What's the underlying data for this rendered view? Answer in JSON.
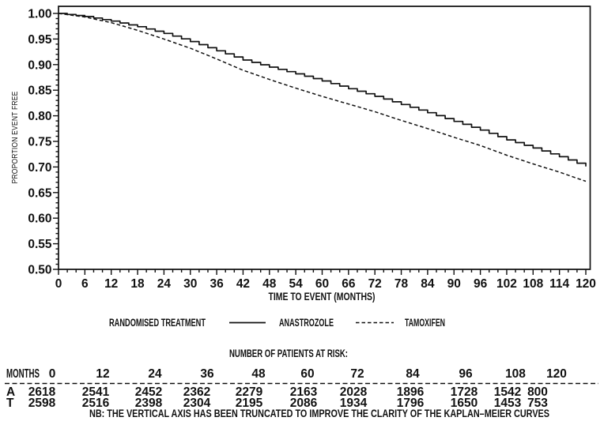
{
  "figure": {
    "background": "#ffffff",
    "ink_color": "#111111"
  },
  "chart_data": {
    "type": "line",
    "title": "",
    "xlabel": "TIME TO EVENT (MONTHS)",
    "ylabel": "PROPORTION EVENT FREE",
    "xlim": [
      0,
      120
    ],
    "ylim": [
      0.5,
      1.0
    ],
    "x_major_tick_step": 6,
    "x_minor_tick_step": 2,
    "y_major_tick_step": 0.05,
    "y_minor_tick_step": 0.01,
    "grid": "off",
    "legend_position": "below-axis",
    "x": [
      0,
      6,
      12,
      18,
      24,
      30,
      36,
      42,
      48,
      54,
      60,
      66,
      72,
      78,
      84,
      90,
      96,
      102,
      108,
      114,
      120
    ],
    "series": [
      {
        "name": "ANASTROZOLE",
        "line_style": "solid",
        "values": [
          1.0,
          0.994,
          0.985,
          0.974,
          0.961,
          0.945,
          0.927,
          0.909,
          0.895,
          0.882,
          0.868,
          0.853,
          0.838,
          0.822,
          0.806,
          0.789,
          0.772,
          0.753,
          0.737,
          0.72,
          0.701
        ]
      },
      {
        "name": "TAMOXIFEN",
        "line_style": "dashed",
        "values": [
          1.0,
          0.993,
          0.982,
          0.967,
          0.95,
          0.932,
          0.911,
          0.889,
          0.871,
          0.854,
          0.838,
          0.823,
          0.808,
          0.791,
          0.775,
          0.758,
          0.742,
          0.723,
          0.706,
          0.69,
          0.672
        ]
      }
    ]
  },
  "legend": {
    "title": "RANDOMISED TREATMENT"
  },
  "risk_table": {
    "title": "NUMBER OF PATIENTS AT RISK:",
    "months_label": "MONTHS",
    "months": [
      "0",
      "12",
      "24",
      "36",
      "48",
      "60",
      "72",
      "84",
      "96",
      "108",
      "120"
    ],
    "rows": [
      {
        "label": "A",
        "values": [
          "2618",
          "2541",
          "2452",
          "2362",
          "2279",
          "2163",
          "2028",
          "1896",
          "1728",
          "1542",
          "800"
        ]
      },
      {
        "label": "T",
        "values": [
          "2598",
          "2516",
          "2398",
          "2304",
          "2195",
          "2086",
          "1934",
          "1796",
          "1650",
          "1453",
          "753"
        ]
      }
    ],
    "footnote": "NB: THE VERTICAL AXIS HAS BEEN TRUNCATED TO IMPROVE THE CLARITY OF THE KAPLAN–MEIER CURVES"
  }
}
